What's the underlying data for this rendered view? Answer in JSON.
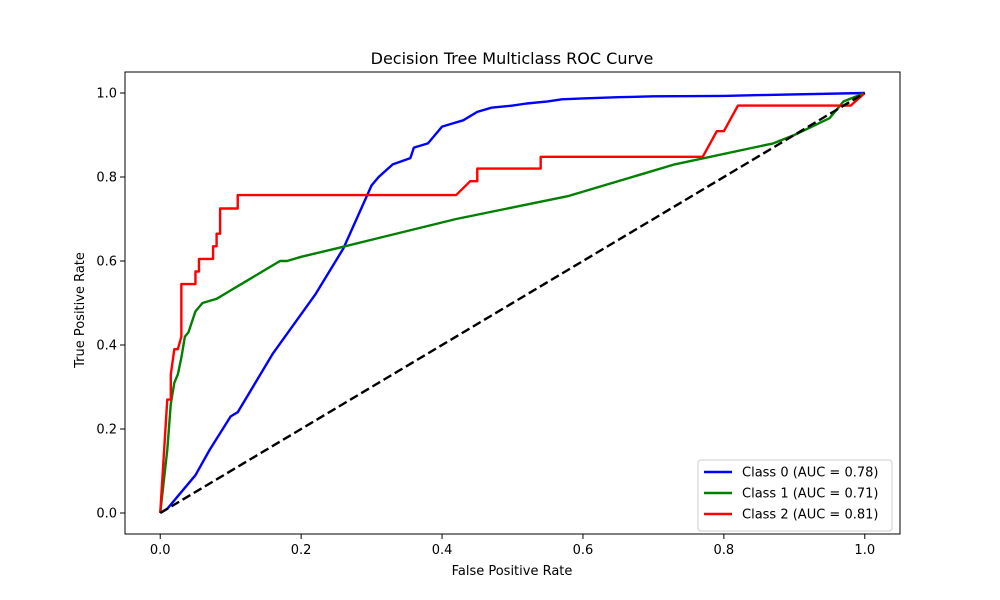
{
  "chart_data": {
    "type": "line",
    "title": "Decision Tree Multiclass ROC Curve",
    "xlabel": "False Positive Rate",
    "ylabel": "True Positive Rate",
    "xlim": [
      -0.05,
      1.05
    ],
    "ylim": [
      -0.05,
      1.05
    ],
    "xticks": [
      "0.0",
      "0.2",
      "0.4",
      "0.6",
      "0.8",
      "1.0"
    ],
    "yticks": [
      "0.0",
      "0.2",
      "0.4",
      "0.6",
      "0.8",
      "1.0"
    ],
    "xtick_values": [
      0,
      0.2,
      0.4,
      0.6,
      0.8,
      1.0
    ],
    "ytick_values": [
      0,
      0.2,
      0.4,
      0.6,
      0.8,
      1.0
    ],
    "grid": false,
    "legend_position": "lower right",
    "series": [
      {
        "name": "Class 0 (AUC = 0.78)",
        "color": "#0000ff",
        "x": [
          0,
          0.01,
          0.05,
          0.07,
          0.1,
          0.11,
          0.16,
          0.22,
          0.26,
          0.3,
          0.31,
          0.33,
          0.355,
          0.36,
          0.38,
          0.39,
          0.4,
          0.41,
          0.43,
          0.45,
          0.47,
          0.5,
          0.52,
          0.55,
          0.57,
          0.6,
          0.65,
          0.7,
          0.8,
          0.85,
          1.0
        ],
        "y": [
          0,
          0.01,
          0.09,
          0.15,
          0.23,
          0.24,
          0.38,
          0.52,
          0.63,
          0.78,
          0.8,
          0.83,
          0.845,
          0.87,
          0.88,
          0.9,
          0.92,
          0.925,
          0.935,
          0.955,
          0.965,
          0.97,
          0.975,
          0.98,
          0.985,
          0.987,
          0.99,
          0.992,
          0.993,
          0.995,
          1.0
        ]
      },
      {
        "name": "Class 1 (AUC = 0.71)",
        "color": "#008000",
        "x": [
          0,
          0.01,
          0.015,
          0.02,
          0.025,
          0.03,
          0.035,
          0.04,
          0.05,
          0.06,
          0.07,
          0.08,
          0.09,
          0.1,
          0.11,
          0.13,
          0.15,
          0.17,
          0.18,
          0.2,
          0.25,
          0.42,
          0.58,
          0.73,
          0.87,
          0.9,
          0.95,
          0.97,
          1.0
        ],
        "y": [
          0,
          0.15,
          0.26,
          0.31,
          0.33,
          0.37,
          0.42,
          0.43,
          0.48,
          0.5,
          0.505,
          0.51,
          0.52,
          0.53,
          0.54,
          0.56,
          0.58,
          0.6,
          0.6,
          0.61,
          0.63,
          0.7,
          0.755,
          0.83,
          0.88,
          0.9,
          0.94,
          0.98,
          1.0
        ]
      },
      {
        "name": "Class 2 (AUC = 0.81)",
        "color": "#ff0000",
        "x": [
          0,
          0.01,
          0.015,
          0.015,
          0.02,
          0.025,
          0.03,
          0.03,
          0.05,
          0.05,
          0.055,
          0.055,
          0.075,
          0.075,
          0.08,
          0.08,
          0.085,
          0.085,
          0.095,
          0.1,
          0.11,
          0.11,
          0.42,
          0.44,
          0.45,
          0.45,
          0.54,
          0.54,
          0.77,
          0.79,
          0.8,
          0.82,
          0.98,
          1.0
        ],
        "y": [
          0,
          0.27,
          0.27,
          0.33,
          0.39,
          0.39,
          0.42,
          0.545,
          0.545,
          0.575,
          0.575,
          0.605,
          0.605,
          0.635,
          0.635,
          0.665,
          0.665,
          0.725,
          0.725,
          0.725,
          0.725,
          0.757,
          0.757,
          0.79,
          0.79,
          0.82,
          0.82,
          0.848,
          0.848,
          0.909,
          0.909,
          0.97,
          0.97,
          1.0
        ]
      },
      {
        "name": "",
        "color": "#000000",
        "dashed": true,
        "x": [
          0,
          1
        ],
        "y": [
          0,
          1
        ]
      }
    ]
  }
}
